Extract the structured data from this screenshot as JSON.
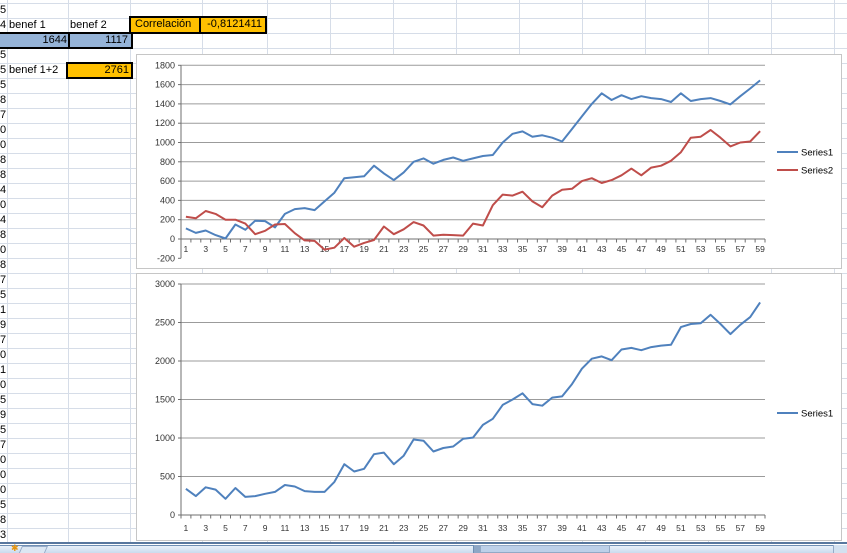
{
  "sheet": {
    "column_a_partial_digits": [
      "5",
      "4",
      "",
      "5",
      "5",
      "5",
      "8",
      "7",
      "0",
      "0",
      "8",
      "8",
      "4",
      "0",
      "4",
      "8",
      "0",
      "8",
      "7",
      "5",
      "1",
      "9",
      "7",
      "0",
      "1",
      "0",
      "5",
      "9",
      "5",
      "7",
      "0",
      "0",
      "0",
      "5",
      "8",
      "3"
    ],
    "cells": {
      "benef1_label": "benef 1",
      "benef2_label": "benef 2",
      "benef1_value": "1644",
      "benef2_value": "1117",
      "correlacion_label": "Correlación",
      "correlacion_value": "-0,8121411",
      "benef12_label": "benef 1+2",
      "benef12_value": "2761"
    },
    "colors": {
      "selection_fill": "#95b3d7",
      "highlight_fill": "#ffc000",
      "sheet_gridline": "#d6dde8",
      "series1_blue": "#4f81bd",
      "series2_red": "#bf4d4a"
    },
    "icons": {
      "new_sheet_tab": "star-icon",
      "star_glyph": "✱"
    }
  },
  "chart_data": [
    {
      "type": "line",
      "title": "",
      "categories": [
        1,
        2,
        3,
        4,
        5,
        6,
        7,
        8,
        9,
        10,
        11,
        12,
        13,
        14,
        15,
        16,
        17,
        18,
        19,
        20,
        21,
        22,
        23,
        24,
        25,
        26,
        27,
        28,
        29,
        30,
        31,
        32,
        33,
        34,
        35,
        36,
        37,
        38,
        39,
        40,
        41,
        42,
        43,
        44,
        45,
        46,
        47,
        48,
        49,
        50,
        51,
        52,
        53,
        54,
        55,
        56,
        57,
        58,
        59
      ],
      "xlabel_every": 2,
      "ylim": [
        -200,
        1800
      ],
      "ytick_step": 200,
      "yticks": [
        "1800",
        "1600",
        "1400",
        "1200",
        "1000",
        "800",
        "600",
        "400",
        "200",
        "0",
        "-200"
      ],
      "grid": true,
      "legend_position": "right",
      "series": [
        {
          "name": "Series1",
          "color": "#4f81bd",
          "values": [
            110,
            63,
            88,
            40,
            5,
            150,
            95,
            190,
            185,
            120,
            260,
            310,
            320,
            300,
            390,
            480,
            630,
            640,
            650,
            760,
            680,
            610,
            690,
            800,
            835,
            780,
            820,
            845,
            810,
            835,
            860,
            870,
            1000,
            1090,
            1115,
            1060,
            1075,
            1050,
            1010,
            1140,
            1270,
            1400,
            1510,
            1440,
            1490,
            1450,
            1480,
            1460,
            1450,
            1420,
            1510,
            1430,
            1450,
            1460,
            1430,
            1395,
            1480,
            1560,
            1644
          ]
        },
        {
          "name": "Series2",
          "color": "#bf4d4a",
          "values": [
            230,
            215,
            290,
            260,
            200,
            200,
            160,
            50,
            85,
            150,
            155,
            60,
            -15,
            -20,
            -110,
            -90,
            10,
            -80,
            -40,
            -10,
            130,
            50,
            100,
            175,
            140,
            35,
            45,
            40,
            35,
            160,
            140,
            350,
            460,
            450,
            490,
            390,
            330,
            450,
            510,
            520,
            600,
            630,
            580,
            610,
            660,
            730,
            660,
            740,
            760,
            810,
            900,
            1050,
            1060,
            1130,
            1050,
            960,
            1000,
            1010,
            1117
          ]
        }
      ]
    },
    {
      "type": "line",
      "title": "",
      "categories": [
        1,
        2,
        3,
        4,
        5,
        6,
        7,
        8,
        9,
        10,
        11,
        12,
        13,
        14,
        15,
        16,
        17,
        18,
        19,
        20,
        21,
        22,
        23,
        24,
        25,
        26,
        27,
        28,
        29,
        30,
        31,
        32,
        33,
        34,
        35,
        36,
        37,
        38,
        39,
        40,
        41,
        42,
        43,
        44,
        45,
        46,
        47,
        48,
        49,
        50,
        51,
        52,
        53,
        54,
        55,
        56,
        57,
        58,
        59
      ],
      "xlabel_every": 2,
      "ylim": [
        0,
        3000
      ],
      "ytick_step": 500,
      "yticks": [
        "3000",
        "2500",
        "2000",
        "1500",
        "1000",
        "500",
        "0"
      ],
      "grid": true,
      "legend_position": "right",
      "series": [
        {
          "name": "Series1",
          "color": "#4f81bd",
          "values": [
            340,
            245,
            360,
            330,
            210,
            350,
            235,
            245,
            275,
            300,
            390,
            370,
            310,
            300,
            300,
            430,
            660,
            565,
            600,
            790,
            810,
            660,
            770,
            980,
            965,
            825,
            870,
            890,
            990,
            1005,
            1170,
            1250,
            1430,
            1500,
            1580,
            1440,
            1420,
            1525,
            1540,
            1700,
            1900,
            2030,
            2060,
            2010,
            2150,
            2170,
            2140,
            2180,
            2200,
            2210,
            2440,
            2480,
            2490,
            2600,
            2480,
            2350,
            2470,
            2570,
            2761
          ]
        }
      ]
    }
  ]
}
